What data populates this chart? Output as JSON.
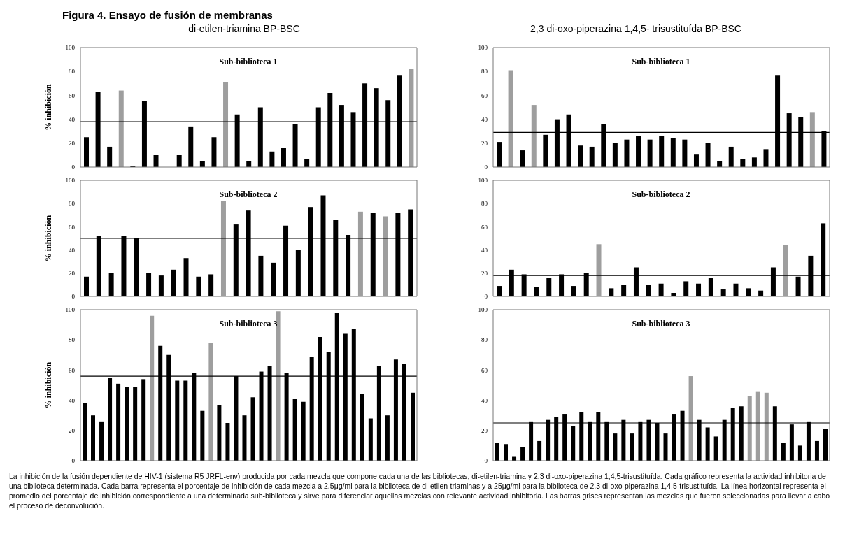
{
  "chart_data": [
    {
      "type": "bar",
      "title": "Sub-biblioteca 1",
      "subtitle": "di-etilen-triamina  BP-BSC",
      "ylabel": "% inhibición",
      "annotations": [
        "Figura 4. Ensayo de fusión de membranas"
      ],
      "categories": [
        null,
        null,
        null,
        null,
        null,
        null,
        null,
        null,
        null,
        null,
        null,
        null,
        null,
        null,
        null,
        null,
        null,
        null,
        null,
        null,
        null,
        null,
        null,
        null,
        null,
        null,
        null,
        null,
        null
      ],
      "values": [
        25,
        63,
        17,
        64,
        1,
        55,
        10,
        0,
        10,
        34,
        5,
        25,
        71,
        44,
        5,
        50,
        13,
        16,
        36,
        7,
        50,
        62,
        52,
        46,
        70,
        66,
        56,
        77,
        82
      ],
      "colors": [
        "#000000",
        "#000000",
        "#000000",
        "#9e9e9e",
        "#000000",
        "#000000",
        "#000000",
        "#000000",
        "#000000",
        "#000000",
        "#000000",
        "#000000",
        "#9e9e9e",
        "#000000",
        "#000000",
        "#000000",
        "#000000",
        "#000000",
        "#000000",
        "#000000",
        "#000000",
        "#000000",
        "#000000",
        "#000000",
        "#000000",
        "#000000",
        "#000000",
        "#000000",
        "#9e9e9e"
      ],
      "ylim": [
        0,
        100
      ],
      "yticks": [
        0,
        20,
        40,
        60,
        80,
        100
      ],
      "grid": false,
      "ref_lines": [
        {
          "axis": "y",
          "value": 38,
          "color": "#000000"
        }
      ]
    },
    {
      "type": "bar",
      "title": "Sub-biblioteca 1",
      "subtitle": "2,3 di-oxo-piperazina 1,4,5- trisustituída BP-BSC",
      "categories": [
        null,
        null,
        null,
        null,
        null,
        null,
        null,
        null,
        null,
        null,
        null,
        null,
        null,
        null,
        null,
        null,
        null,
        null,
        null,
        null,
        null,
        null,
        null,
        null,
        null,
        null,
        null,
        null,
        null
      ],
      "values": [
        21,
        81,
        14,
        52,
        27,
        40,
        44,
        18,
        17,
        36,
        20,
        23,
        26,
        23,
        26,
        24,
        23,
        11,
        20,
        5,
        17,
        7,
        8,
        15,
        77,
        45,
        42,
        46,
        30
      ],
      "colors": [
        "#000000",
        "#9e9e9e",
        "#000000",
        "#9e9e9e",
        "#000000",
        "#000000",
        "#000000",
        "#000000",
        "#000000",
        "#000000",
        "#000000",
        "#000000",
        "#000000",
        "#000000",
        "#000000",
        "#000000",
        "#000000",
        "#000000",
        "#000000",
        "#000000",
        "#000000",
        "#000000",
        "#000000",
        "#000000",
        "#000000",
        "#000000",
        "#000000",
        "#9e9e9e",
        "#000000"
      ],
      "ylim": [
        0,
        100
      ],
      "yticks": [
        0,
        20,
        40,
        60,
        80,
        100
      ],
      "grid": false,
      "ref_lines": [
        {
          "axis": "y",
          "value": 29,
          "color": "#000000"
        }
      ]
    },
    {
      "type": "bar",
      "title": "Sub-biblioteca 2",
      "ylabel": "% inhibición",
      "categories": [
        null,
        null,
        null,
        null,
        null,
        null,
        null,
        null,
        null,
        null,
        null,
        null,
        null,
        null,
        null,
        null,
        null,
        null,
        null,
        null,
        null,
        null,
        null,
        null,
        null,
        null,
        null
      ],
      "values": [
        17,
        52,
        20,
        52,
        50,
        20,
        18,
        23,
        33,
        17,
        19,
        82,
        62,
        74,
        35,
        29,
        61,
        40,
        77,
        87,
        66,
        53,
        73,
        72,
        69,
        72,
        75
      ],
      "colors": [
        "#000000",
        "#000000",
        "#000000",
        "#000000",
        "#000000",
        "#000000",
        "#000000",
        "#000000",
        "#000000",
        "#000000",
        "#000000",
        "#9e9e9e",
        "#000000",
        "#000000",
        "#000000",
        "#000000",
        "#000000",
        "#000000",
        "#000000",
        "#000000",
        "#000000",
        "#000000",
        "#9e9e9e",
        "#000000",
        "#9e9e9e",
        "#000000",
        "#000000"
      ],
      "ylim": [
        0,
        100
      ],
      "yticks": [
        0,
        20,
        40,
        60,
        80,
        100
      ],
      "grid": false,
      "ref_lines": [
        {
          "axis": "y",
          "value": 50,
          "color": "#000000"
        }
      ]
    },
    {
      "type": "bar",
      "title": "Sub-biblioteca 2",
      "categories": [
        null,
        null,
        null,
        null,
        null,
        null,
        null,
        null,
        null,
        null,
        null,
        null,
        null,
        null,
        null,
        null,
        null,
        null,
        null,
        null,
        null,
        null,
        null,
        null,
        null,
        null,
        null
      ],
      "values": [
        9,
        23,
        19,
        8,
        16,
        19,
        9,
        20,
        45,
        7,
        10,
        25,
        10,
        11,
        3,
        13,
        11,
        16,
        6,
        11,
        7,
        5,
        25,
        44,
        17,
        35,
        63
      ],
      "colors": [
        "#000000",
        "#000000",
        "#000000",
        "#000000",
        "#000000",
        "#000000",
        "#000000",
        "#000000",
        "#9e9e9e",
        "#000000",
        "#000000",
        "#000000",
        "#000000",
        "#000000",
        "#000000",
        "#000000",
        "#000000",
        "#000000",
        "#000000",
        "#000000",
        "#000000",
        "#000000",
        "#000000",
        "#9e9e9e",
        "#000000",
        "#000000",
        "#000000"
      ],
      "ylim": [
        0,
        100
      ],
      "yticks": [
        0,
        20,
        40,
        60,
        80,
        100
      ],
      "grid": false,
      "ref_lines": [
        {
          "axis": "y",
          "value": 18,
          "color": "#000000"
        }
      ]
    },
    {
      "type": "bar",
      "title": "Sub-biblioteca 3",
      "ylabel": "% inhibición",
      "categories": [
        null,
        null,
        null,
        null,
        null,
        null,
        null,
        null,
        null,
        null,
        null,
        null,
        null,
        null,
        null,
        null,
        null,
        null,
        null,
        null,
        null,
        null,
        null,
        null,
        null,
        null,
        null,
        null,
        null,
        null,
        null,
        null,
        null,
        null,
        null,
        null,
        null,
        null,
        null,
        null
      ],
      "values": [
        38,
        30,
        26,
        55,
        51,
        49,
        49,
        54,
        96,
        76,
        70,
        53,
        53,
        58,
        33,
        78,
        37,
        25,
        56,
        30,
        42,
        59,
        63,
        99,
        58,
        41,
        39,
        69,
        82,
        72,
        98,
        84,
        87,
        44,
        28,
        63,
        30,
        67,
        64,
        45
      ],
      "colors": [
        "#000000",
        "#000000",
        "#000000",
        "#000000",
        "#000000",
        "#000000",
        "#000000",
        "#000000",
        "#9e9e9e",
        "#000000",
        "#000000",
        "#000000",
        "#000000",
        "#000000",
        "#000000",
        "#9e9e9e",
        "#000000",
        "#000000",
        "#000000",
        "#000000",
        "#000000",
        "#000000",
        "#000000",
        "#9e9e9e",
        "#000000",
        "#000000",
        "#000000",
        "#000000",
        "#000000",
        "#000000",
        "#000000",
        "#000000",
        "#000000",
        "#000000",
        "#000000",
        "#000000",
        "#000000",
        "#000000",
        "#000000",
        "#000000"
      ],
      "ylim": [
        0,
        100
      ],
      "yticks": [
        0,
        20,
        40,
        60,
        80,
        100
      ],
      "grid": false,
      "ref_lines": [
        {
          "axis": "y",
          "value": 56,
          "color": "#000000"
        }
      ]
    },
    {
      "type": "bar",
      "title": "Sub-biblioteca 3",
      "annotations": [
        "La inhibición de la fusión dependiente de HIV-1 (sistema R5 JRFL-env) producida por cada mezcla que compone cada una de las bibliotecas, di-etilen-triamina y 2,3 di-oxo-piperazina 1,4,5-trisustituída. Cada gráfico representa la actividad inhibitoria de una biblioteca determinada. Cada barra representa el porcentaje de inhibición de cada mezcla a 2.5μg/ml para la biblioteca de di-etilen-triaminas y a 25μg/ml para la biblioteca de 2,3 di-oxo-piperazina 1,4,5-trisustituída.  La línea horizontal representa el promedio del porcentaje de inhibición correspondiente a una determinada sub-biblioteca y sirve para diferenciar aquellas mezclas con relevante actividad inhibitoria. Las barras grises representan las mezclas que fueron seleccionadas para llevar a cabo el proceso de deconvolución."
      ],
      "categories": [
        null,
        null,
        null,
        null,
        null,
        null,
        null,
        null,
        null,
        null,
        null,
        null,
        null,
        null,
        null,
        null,
        null,
        null,
        null,
        null,
        null,
        null,
        null,
        null,
        null,
        null,
        null,
        null,
        null,
        null,
        null,
        null,
        null,
        null,
        null,
        null,
        null,
        null,
        null,
        null
      ],
      "values": [
        12,
        11,
        3,
        9,
        26,
        13,
        27,
        29,
        31,
        23,
        32,
        26,
        32,
        26,
        18,
        27,
        18,
        26,
        27,
        25,
        18,
        31,
        33,
        56,
        27,
        22,
        16,
        27,
        35,
        36,
        43,
        46,
        45,
        36,
        12,
        24,
        10,
        26,
        13,
        21
      ],
      "colors": [
        "#000000",
        "#000000",
        "#000000",
        "#000000",
        "#000000",
        "#000000",
        "#000000",
        "#000000",
        "#000000",
        "#000000",
        "#000000",
        "#000000",
        "#000000",
        "#000000",
        "#000000",
        "#000000",
        "#000000",
        "#000000",
        "#000000",
        "#000000",
        "#000000",
        "#000000",
        "#000000",
        "#9e9e9e",
        "#000000",
        "#000000",
        "#000000",
        "#000000",
        "#000000",
        "#000000",
        "#9e9e9e",
        "#9e9e9e",
        "#9e9e9e",
        "#000000",
        "#000000",
        "#000000",
        "#000000",
        "#000000",
        "#000000",
        "#000000"
      ],
      "ylim": [
        0,
        100
      ],
      "yticks": [
        0,
        20,
        40,
        60,
        80,
        100
      ],
      "grid": false,
      "ref_lines": [
        {
          "axis": "y",
          "value": 25,
          "color": "#000000"
        }
      ]
    }
  ]
}
